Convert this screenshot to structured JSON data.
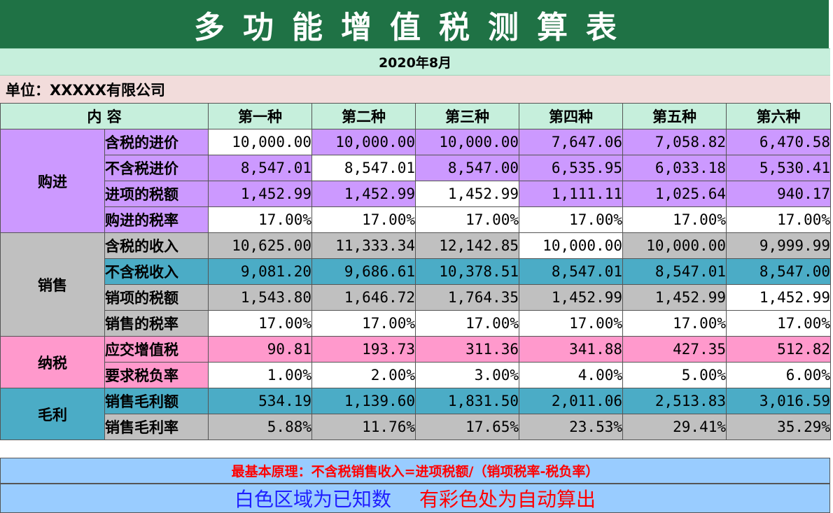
{
  "title": "多功能增值税测算表",
  "date": "2020年8月",
  "unit": "单位：XXXXX有限公司",
  "header": {
    "content_label": "内    容",
    "columns": [
      "第一种",
      "第二种",
      "第三种",
      "第四种",
      "第五种",
      "第六种"
    ]
  },
  "groups": [
    {
      "name": "购进",
      "rows": [
        {
          "label": "含税的进价",
          "values": [
            "10,000.00",
            "10,000.00",
            "10,000.00",
            "7,647.06",
            "7,058.82",
            "6,470.58"
          ]
        },
        {
          "label": "不含税进价",
          "values": [
            "8,547.01",
            "8,547.01",
            "8,547.00",
            "6,535.95",
            "6,033.18",
            "5,530.41"
          ]
        },
        {
          "label": "进项的税额",
          "values": [
            "1,452.99",
            "1,452.99",
            "1,452.99",
            "1,111.11",
            "1,025.64",
            "940.17"
          ]
        },
        {
          "label": "购进的税率",
          "values": [
            "17.00%",
            "17.00%",
            "17.00%",
            "17.00%",
            "17.00%",
            "17.00%"
          ]
        }
      ]
    },
    {
      "name": "销售",
      "rows": [
        {
          "label": "含税的收入",
          "values": [
            "10,625.00",
            "11,333.34",
            "12,142.85",
            "10,000.00",
            "10,000.00",
            "9,999.99"
          ]
        },
        {
          "label": "不含税收入",
          "values": [
            "9,081.20",
            "9,686.61",
            "10,378.51",
            "8,547.01",
            "8,547.01",
            "8,547.00"
          ]
        },
        {
          "label": "销项的税额",
          "values": [
            "1,543.80",
            "1,646.72",
            "1,764.35",
            "1,452.99",
            "1,452.99",
            "1,452.99"
          ]
        },
        {
          "label": "销售的税率",
          "values": [
            "17.00%",
            "17.00%",
            "17.00%",
            "17.00%",
            "17.00%",
            "17.00%"
          ]
        }
      ]
    },
    {
      "name": "纳税",
      "rows": [
        {
          "label": "应交增值税",
          "values": [
            "90.81",
            "193.73",
            "311.36",
            "341.88",
            "427.35",
            "512.82"
          ]
        },
        {
          "label": "要求税负率",
          "values": [
            "1.00%",
            "2.00%",
            "3.00%",
            "4.00%",
            "5.00%",
            "6.00%"
          ]
        }
      ]
    },
    {
      "name": "毛利",
      "rows": [
        {
          "label": "销售毛利额",
          "values": [
            "534.19",
            "1,139.60",
            "1,831.50",
            "2,011.06",
            "2,513.83",
            "3,016.59"
          ]
        },
        {
          "label": "销售毛利率",
          "values": [
            "5.88%",
            "11.76%",
            "17.65%",
            "23.53%",
            "29.41%",
            "35.29%"
          ]
        }
      ]
    }
  ],
  "note": "最基本原理：不含税销售收入=进项税额/（销项税率-税负率）",
  "legend": {
    "known": "白色区域为已知数",
    "auto": "有彩色处为自动算出"
  },
  "colors": {
    "title_bg": "#1f7245",
    "header_bg": "#c6efdc",
    "unit_bg": "#f2dcdb",
    "purple": "#cc99ff",
    "gray": "#c0c0c0",
    "teal": "#4bacc6",
    "pink": "#ff99cc",
    "footer_bg": "#99ccff"
  }
}
